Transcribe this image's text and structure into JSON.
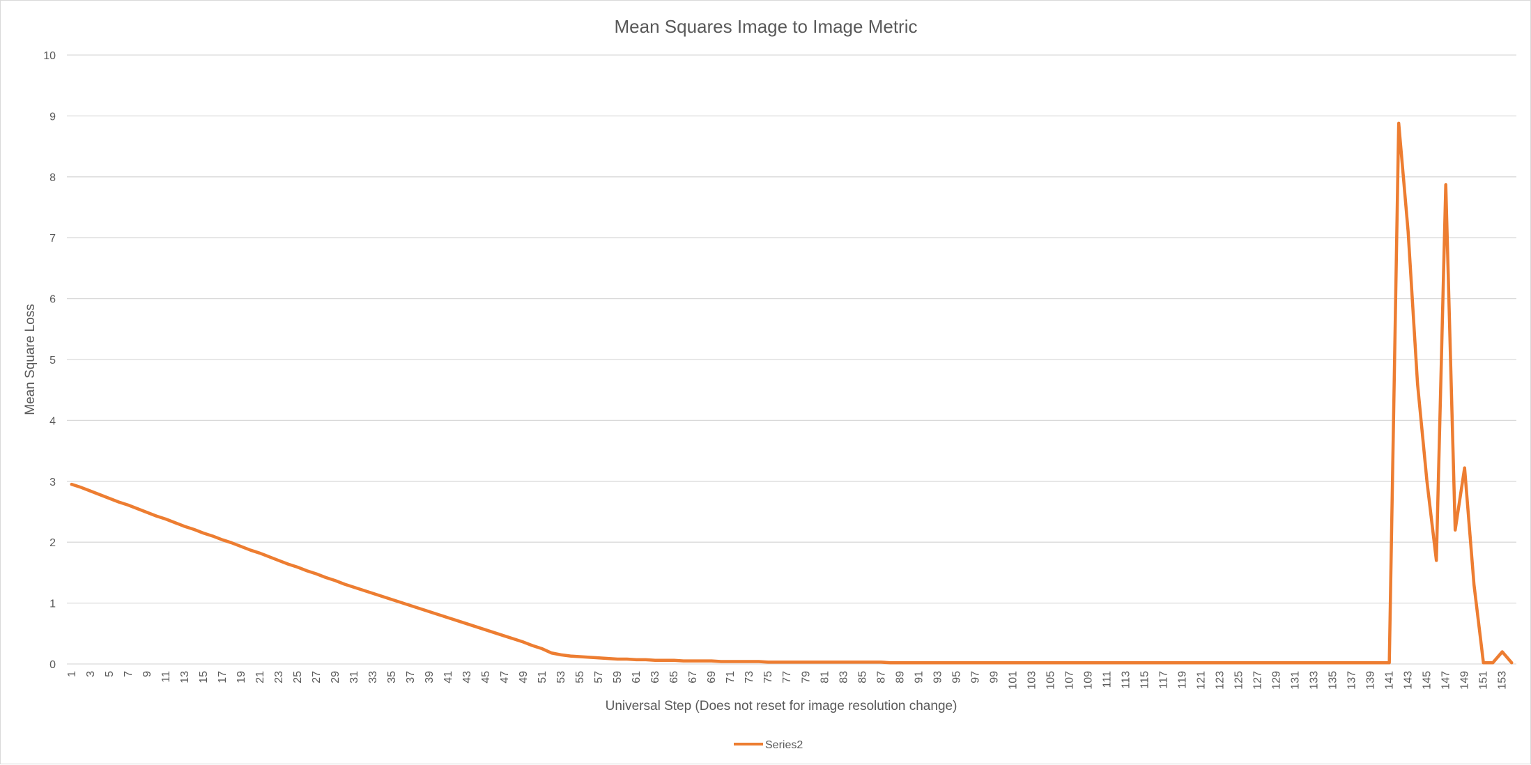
{
  "chart_data": {
    "type": "line",
    "title": "Mean Squares Image to Image Metric",
    "xlabel": "Universal Step (Does not reset for image resolution change)",
    "ylabel": "Mean Square Loss",
    "ylim": [
      0,
      10
    ],
    "yticks": [
      0,
      1,
      2,
      3,
      4,
      5,
      6,
      7,
      8,
      9,
      10
    ],
    "x_range": [
      1,
      154
    ],
    "xtick_labels_every": 2,
    "grid": true,
    "legend_position": "bottom",
    "series": [
      {
        "name": "Series2",
        "color": "#ED7D31",
        "values": [
          2.95,
          2.9,
          2.84,
          2.78,
          2.72,
          2.66,
          2.61,
          2.55,
          2.49,
          2.43,
          2.38,
          2.32,
          2.26,
          2.21,
          2.15,
          2.1,
          2.04,
          1.99,
          1.93,
          1.87,
          1.82,
          1.76,
          1.7,
          1.64,
          1.59,
          1.53,
          1.48,
          1.42,
          1.37,
          1.31,
          1.26,
          1.21,
          1.16,
          1.11,
          1.06,
          1.01,
          0.96,
          0.91,
          0.86,
          0.81,
          0.76,
          0.71,
          0.66,
          0.61,
          0.56,
          0.51,
          0.46,
          0.41,
          0.36,
          0.3,
          0.25,
          0.18,
          0.15,
          0.13,
          0.12,
          0.11,
          0.1,
          0.09,
          0.08,
          0.08,
          0.07,
          0.07,
          0.06,
          0.06,
          0.06,
          0.05,
          0.05,
          0.05,
          0.05,
          0.04,
          0.04,
          0.04,
          0.04,
          0.04,
          0.03,
          0.03,
          0.03,
          0.03,
          0.03,
          0.03,
          0.03,
          0.03,
          0.03,
          0.03,
          0.03,
          0.03,
          0.03,
          0.02,
          0.02,
          0.02,
          0.02,
          0.02,
          0.02,
          0.02,
          0.02,
          0.02,
          0.02,
          0.02,
          0.02,
          0.02,
          0.02,
          0.02,
          0.02,
          0.02,
          0.02,
          0.02,
          0.02,
          0.02,
          0.02,
          0.02,
          0.02,
          0.02,
          0.02,
          0.02,
          0.02,
          0.02,
          0.02,
          0.02,
          0.02,
          0.02,
          0.02,
          0.02,
          0.02,
          0.02,
          0.02,
          0.02,
          0.02,
          0.02,
          0.02,
          0.02,
          0.02,
          0.02,
          0.02,
          0.02,
          0.02,
          0.02,
          0.02,
          0.02,
          0.02,
          0.02,
          0.02,
          8.88,
          7.1,
          4.6,
          3.0,
          1.7,
          7.87,
          2.2,
          3.22,
          1.3,
          0.02,
          0.02,
          0.2,
          0.02
        ]
      }
    ]
  }
}
